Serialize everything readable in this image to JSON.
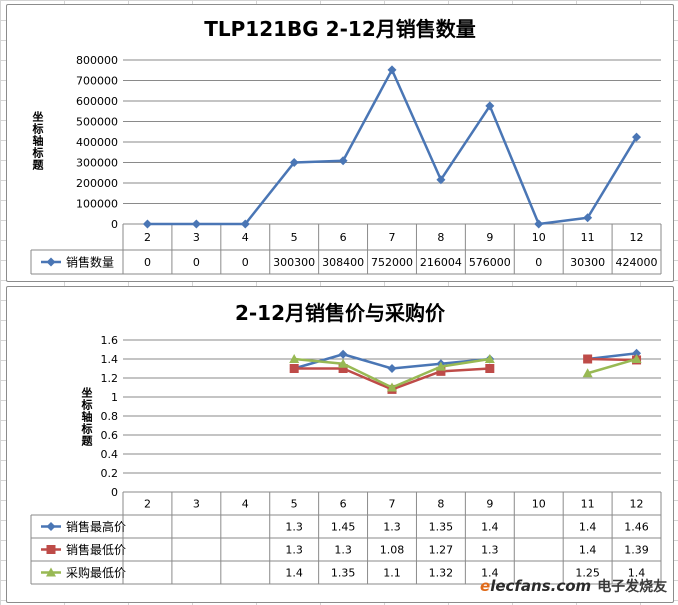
{
  "chart_data": [
    {
      "type": "line",
      "title": "TLP121BG  2-12月销售数量",
      "ylabel": "坐标轴标题",
      "categories": [
        "2",
        "3",
        "4",
        "5",
        "6",
        "7",
        "8",
        "9",
        "10",
        "11",
        "12"
      ],
      "ylim": [
        0,
        800000
      ],
      "yticks": [
        0,
        100000,
        200000,
        300000,
        400000,
        500000,
        600000,
        700000,
        800000
      ],
      "grid": true,
      "legend": "data-table",
      "series": [
        {
          "name": "销售数量",
          "color": "#4a76b5",
          "marker": "diamond",
          "values": [
            0,
            0,
            0,
            300300,
            308400,
            752000,
            216004,
            576000,
            0,
            30300,
            424000
          ],
          "labels": [
            "0",
            "0",
            "0",
            "300300",
            "308400",
            "752000",
            "216004",
            "576000",
            "0",
            "30300",
            "424000"
          ]
        }
      ]
    },
    {
      "type": "line",
      "title": "2-12月销售价与采购价",
      "ylabel": "坐标轴标题",
      "categories": [
        "2",
        "3",
        "4",
        "5",
        "6",
        "7",
        "8",
        "9",
        "10",
        "11",
        "12"
      ],
      "ylim": [
        0,
        1.6
      ],
      "yticks": [
        0,
        0.2,
        0.4,
        0.6,
        0.8,
        1,
        1.2,
        1.4,
        1.6
      ],
      "grid": true,
      "legend": "data-table",
      "series": [
        {
          "name": "销售最高价",
          "color": "#4a76b5",
          "marker": "diamond",
          "values": [
            null,
            null,
            null,
            1.3,
            1.45,
            1.3,
            1.35,
            1.4,
            null,
            1.4,
            1.46
          ],
          "labels": [
            "",
            "",
            "",
            "1.3",
            "1.45",
            "1.3",
            "1.35",
            "1.4",
            "",
            "1.4",
            "1.46"
          ]
        },
        {
          "name": "销售最低价",
          "color": "#be4b48",
          "marker": "square",
          "values": [
            null,
            null,
            null,
            1.3,
            1.3,
            1.08,
            1.27,
            1.3,
            null,
            1.4,
            1.39
          ],
          "labels": [
            "",
            "",
            "",
            "1.3",
            "1.3",
            "1.08",
            "1.27",
            "1.3",
            "",
            "1.4",
            "1.39"
          ]
        },
        {
          "name": "采购最低价",
          "color": "#98b954",
          "marker": "triangle",
          "values": [
            null,
            null,
            null,
            1.4,
            1.35,
            1.1,
            1.32,
            1.4,
            null,
            1.25,
            1.4
          ],
          "labels": [
            "",
            "",
            "",
            "1.4",
            "1.35",
            "1.1",
            "1.32",
            "1.4",
            "",
            "1.25",
            "1.4"
          ]
        }
      ]
    }
  ],
  "watermark": {
    "prefix": "e",
    "rest": "lecfans.com",
    "cn": "电子发烧友"
  }
}
